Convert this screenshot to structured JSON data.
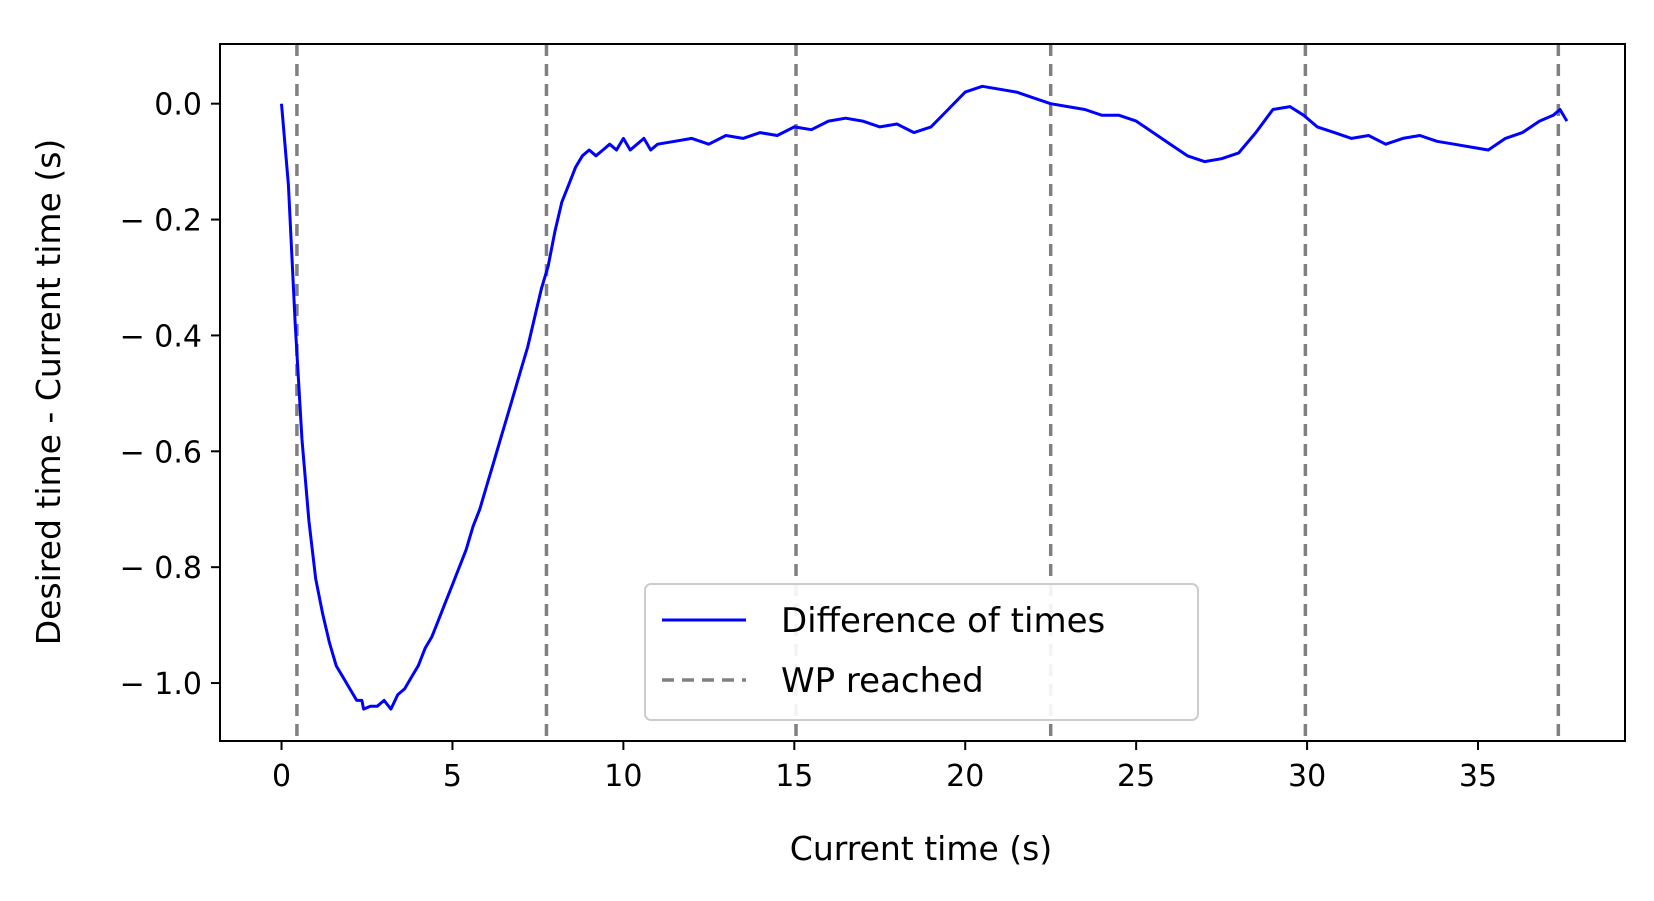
{
  "chart_data": {
    "type": "line",
    "title": "",
    "xlabel": "Current time (s)",
    "ylabel": "Desired time - Current time (s)",
    "xlim": [
      -1.8,
      39.3
    ],
    "ylim": [
      -1.1,
      0.103
    ],
    "xticks": [
      0,
      5,
      10,
      15,
      20,
      25,
      30,
      35
    ],
    "xtick_labels": [
      "0",
      "5",
      "10",
      "15",
      "20",
      "25",
      "30",
      "35"
    ],
    "yticks": [
      0.0,
      -0.2,
      -0.4,
      -0.6,
      -0.8,
      -1.0
    ],
    "ytick_labels": [
      "0.0",
      "− 0.2",
      "− 0.4",
      "− 0.6",
      "− 0.8",
      "− 1.0"
    ],
    "grid": false,
    "legend": {
      "position": "lower center",
      "entries": [
        {
          "label": "Difference of times",
          "style": "solid",
          "color": "#0000ff"
        },
        {
          "label": "WP reached",
          "style": "dashed",
          "color": "#808080"
        }
      ]
    },
    "series": [
      {
        "name": "Difference of times",
        "color": "#0000ff",
        "x": [
          0.0,
          0.2,
          0.4,
          0.6,
          0.8,
          1.0,
          1.2,
          1.4,
          1.6,
          1.7,
          1.8,
          2.0,
          2.2,
          2.35,
          2.4,
          2.6,
          2.8,
          3.0,
          3.2,
          3.4,
          3.6,
          3.8,
          4.0,
          4.2,
          4.4,
          4.6,
          4.8,
          5.0,
          5.2,
          5.4,
          5.6,
          5.8,
          6.0,
          6.2,
          6.4,
          6.6,
          6.8,
          7.0,
          7.2,
          7.4,
          7.6,
          7.8,
          8.0,
          8.2,
          8.4,
          8.6,
          8.8,
          9.0,
          9.2,
          9.4,
          9.6,
          9.8,
          10.0,
          10.2,
          10.4,
          10.6,
          10.8,
          11.0,
          11.5,
          12.0,
          12.5,
          13.0,
          13.5,
          14.0,
          14.5,
          15.0,
          15.5,
          16.0,
          16.5,
          17.0,
          17.5,
          18.0,
          18.5,
          19.0,
          19.5,
          20.0,
          20.5,
          21.0,
          21.5,
          22.0,
          22.5,
          23.0,
          23.5,
          24.0,
          24.5,
          25.0,
          25.5,
          26.0,
          26.5,
          27.0,
          27.5,
          28.0,
          28.5,
          29.0,
          29.5,
          29.9,
          30.3,
          30.8,
          31.3,
          31.8,
          32.3,
          32.8,
          33.3,
          33.8,
          34.3,
          34.8,
          35.3,
          35.8,
          36.3,
          36.8,
          37.2,
          37.4,
          37.6
        ],
        "y": [
          0.0,
          -0.14,
          -0.38,
          -0.58,
          -0.72,
          -0.82,
          -0.88,
          -0.93,
          -0.97,
          -0.98,
          -0.99,
          -1.01,
          -1.03,
          -1.03,
          -1.045,
          -1.04,
          -1.04,
          -1.03,
          -1.045,
          -1.02,
          -1.01,
          -0.99,
          -0.97,
          -0.94,
          -0.92,
          -0.89,
          -0.86,
          -0.83,
          -0.8,
          -0.77,
          -0.73,
          -0.7,
          -0.66,
          -0.62,
          -0.58,
          -0.54,
          -0.5,
          -0.46,
          -0.42,
          -0.37,
          -0.32,
          -0.28,
          -0.22,
          -0.17,
          -0.14,
          -0.11,
          -0.09,
          -0.08,
          -0.09,
          -0.08,
          -0.07,
          -0.08,
          -0.06,
          -0.08,
          -0.07,
          -0.06,
          -0.08,
          -0.07,
          -0.065,
          -0.06,
          -0.07,
          -0.055,
          -0.06,
          -0.05,
          -0.055,
          -0.04,
          -0.045,
          -0.03,
          -0.025,
          -0.03,
          -0.04,
          -0.035,
          -0.05,
          -0.04,
          -0.01,
          0.02,
          0.03,
          0.025,
          0.02,
          0.01,
          0.0,
          -0.005,
          -0.01,
          -0.02,
          -0.02,
          -0.03,
          -0.05,
          -0.07,
          -0.09,
          -0.1,
          -0.095,
          -0.085,
          -0.05,
          -0.01,
          -0.005,
          -0.02,
          -0.04,
          -0.05,
          -0.06,
          -0.055,
          -0.07,
          -0.06,
          -0.055,
          -0.065,
          -0.07,
          -0.075,
          -0.08,
          -0.06,
          -0.05,
          -0.03,
          -0.02,
          -0.01,
          -0.03
        ]
      }
    ],
    "wp_reached_x": [
      0.45,
      7.75,
      15.05,
      22.5,
      29.95,
      37.35
    ]
  }
}
